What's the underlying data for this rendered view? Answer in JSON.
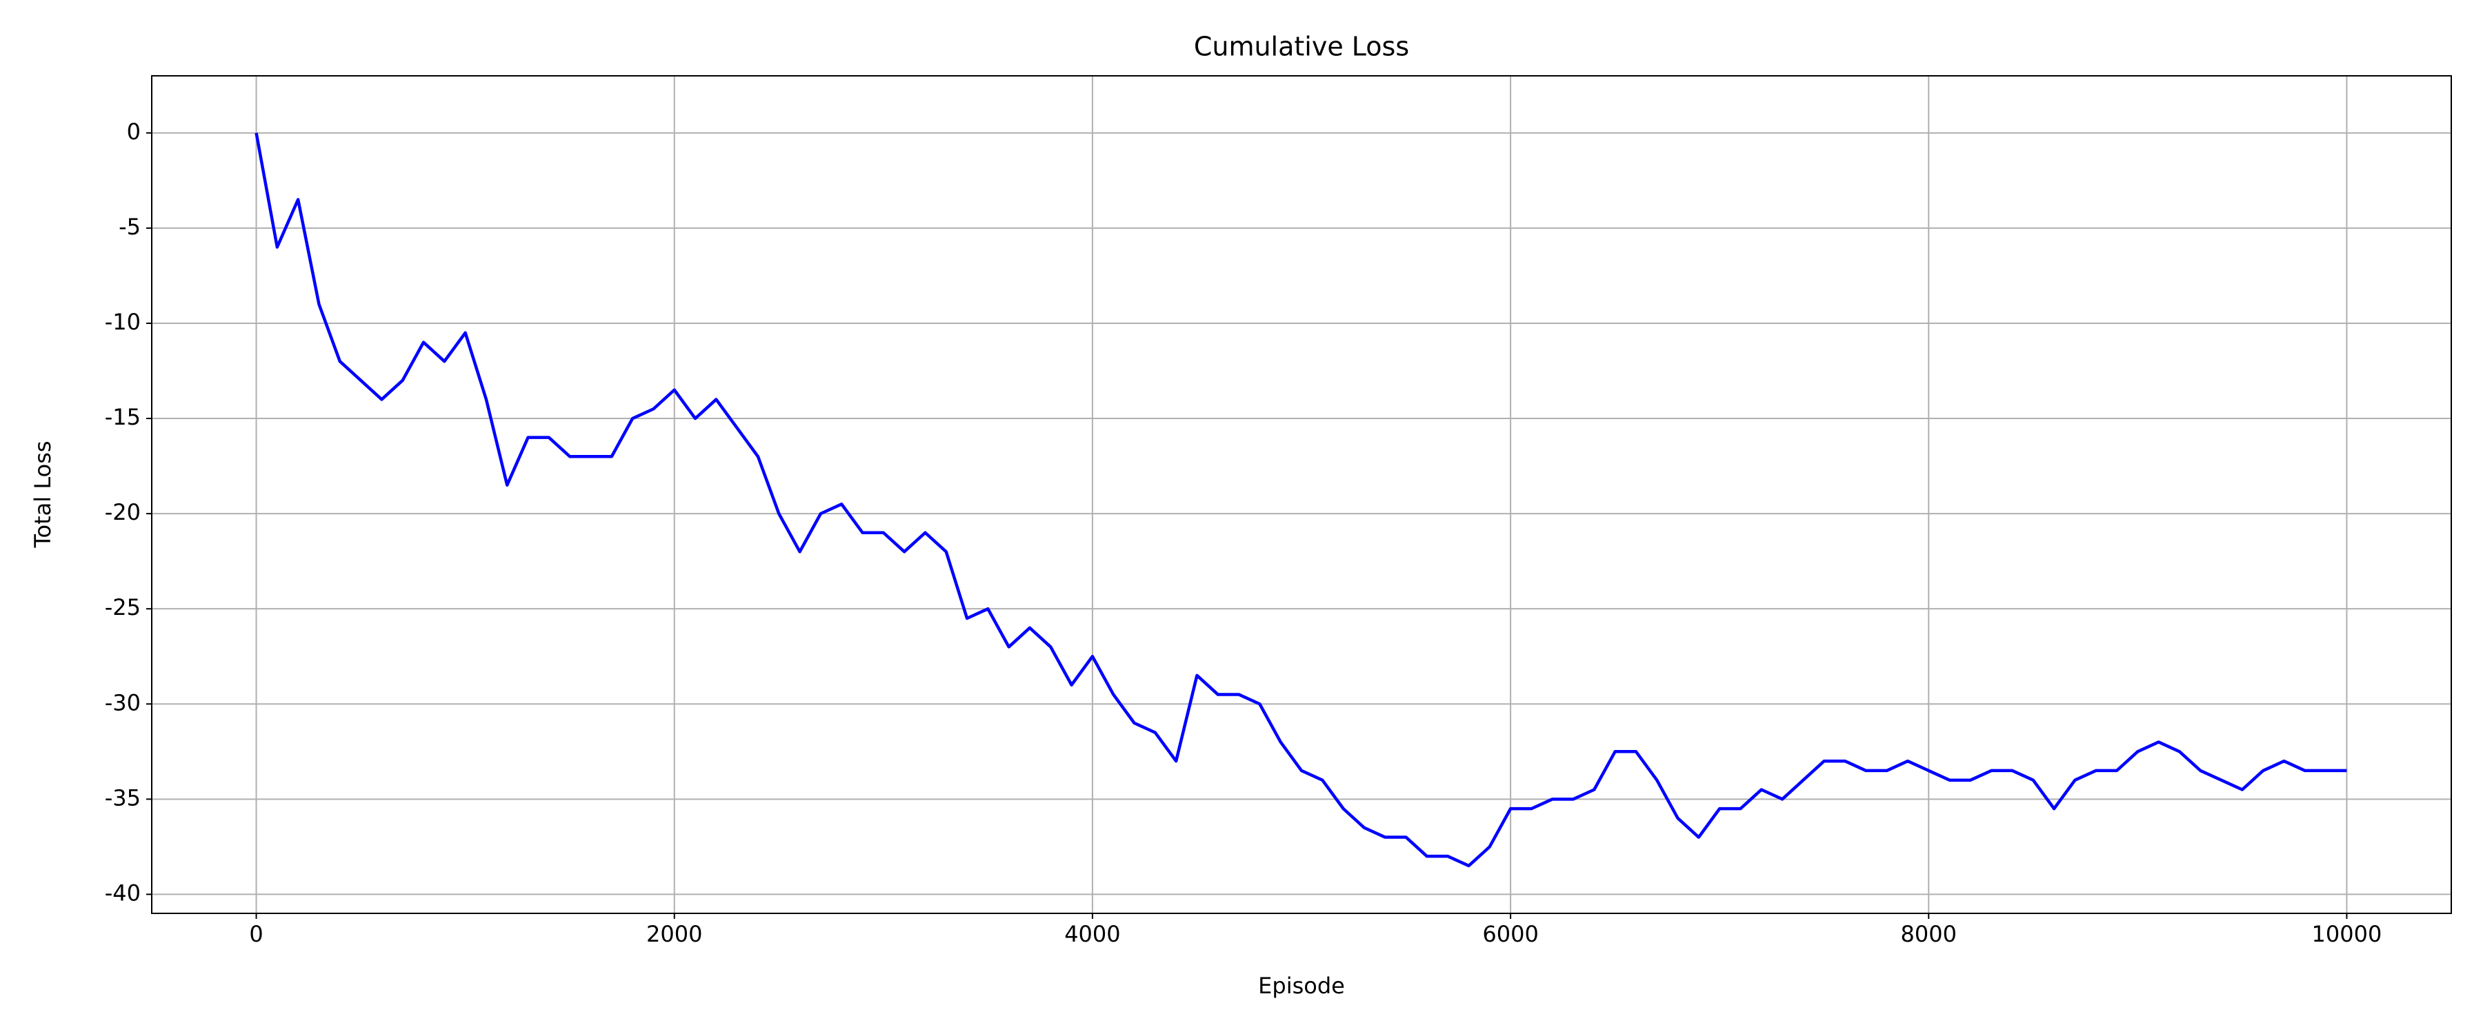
{
  "chart_data": {
    "type": "line",
    "title": "Cumulative Loss",
    "x_label": "Episode",
    "y_label": "Total Loss",
    "x": [
      0,
      100,
      200,
      300,
      400,
      500,
      600,
      700,
      800,
      900,
      1000,
      1100,
      1200,
      1300,
      1400,
      1500,
      1600,
      1700,
      1800,
      1900,
      2000,
      2100,
      2200,
      2300,
      2400,
      2500,
      2600,
      2700,
      2800,
      2900,
      3000,
      3100,
      3200,
      3300,
      3400,
      3500,
      3600,
      3700,
      3800,
      3900,
      4000,
      4100,
      4200,
      4300,
      4400,
      4500,
      4600,
      4700,
      4800,
      4900,
      5000,
      5100,
      5200,
      5300,
      5400,
      5500,
      5600,
      5700,
      5800,
      5900,
      6000,
      6100,
      6200,
      6300,
      6400,
      6500,
      6600,
      6700,
      6800,
      6900,
      7000,
      7100,
      7200,
      7300,
      7400,
      7500,
      7600,
      7700,
      7800,
      7900,
      8000,
      8100,
      8200,
      8300,
      8400,
      8500,
      8600,
      8700,
      8800,
      8900,
      9000,
      9100,
      9200,
      9300,
      9400,
      9500,
      9600,
      9700,
      9800,
      9900,
      10000
    ],
    "series": [
      {
        "name": "Total Loss",
        "color": "#0000ff",
        "values": [
          0,
          -6,
          -3.5,
          -9,
          -12,
          -13,
          -14,
          -13,
          -11,
          -12,
          -10.5,
          -14,
          -18.5,
          -16,
          -16,
          -17,
          -17,
          -17,
          -15,
          -14.5,
          -13.5,
          -15,
          -14,
          -15.5,
          -17,
          -20,
          -22,
          -20,
          -19.5,
          -21,
          -21,
          -22,
          -21,
          -22,
          -25.5,
          -25,
          -27,
          -26,
          -27,
          -29,
          -27.5,
          -29.5,
          -31,
          -31.5,
          -33,
          -28.5,
          -29.5,
          -29.5,
          -30,
          -32,
          -33.5,
          -34,
          -35.5,
          -36.5,
          -37,
          -37,
          -38,
          -38,
          -38.5,
          -37.5,
          -35.5,
          -35.5,
          -35,
          -35,
          -34.5,
          -32.5,
          -32.5,
          -34,
          -36,
          -37,
          -35.5,
          -35.5,
          -34.5,
          -35,
          -34,
          -33,
          -33,
          -33.5,
          -33.5,
          -33,
          -33.5,
          -34,
          -34,
          -33.5,
          -33.5,
          -34,
          -35.5,
          -34,
          -33.5,
          -33.5,
          -32.5,
          -32,
          -32.5,
          -33.5,
          -34,
          -34.5,
          -33.5,
          -33,
          -33.5,
          -33.5,
          -33.5
        ]
      }
    ],
    "xlim": [
      -500,
      10500
    ],
    "ylim": [
      -41,
      3
    ],
    "xticks": [
      0,
      2000,
      4000,
      6000,
      8000,
      10000
    ],
    "yticks": [
      -40,
      -35,
      -30,
      -25,
      -20,
      -15,
      -10,
      -5,
      0
    ],
    "grid": true
  }
}
